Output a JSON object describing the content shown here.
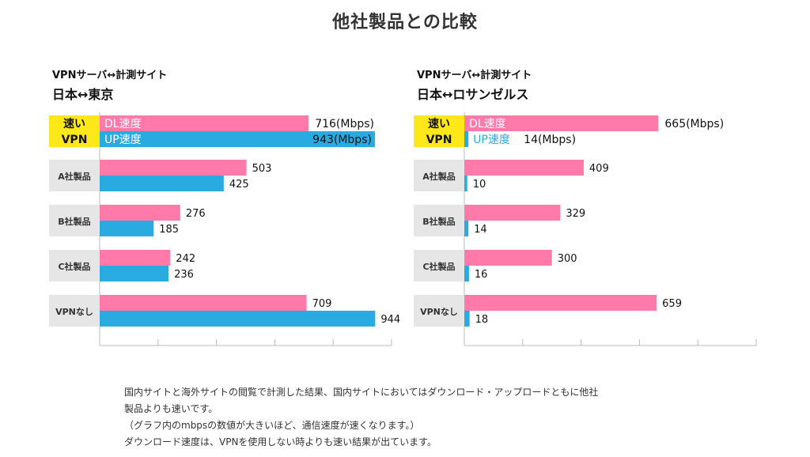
{
  "page": {
    "title": "他社製品との比較"
  },
  "colors": {
    "dl": "#ff7aa8",
    "up": "#29abe2",
    "highlight": "#ffe81a",
    "category_bg": "#e6e6e6",
    "axis": "#bbbbbb"
  },
  "chart_data": [
    {
      "type": "bar",
      "orientation": "horizontal",
      "title_line1": "VPNサーバ↔計測サイト",
      "title_line2": "日本↔東京",
      "categories": [
        "速いVPN",
        "A社製品",
        "B社製品",
        "C社製品",
        "VPNなし"
      ],
      "category_labels": [
        [
          "速い",
          "VPN"
        ],
        [
          "A社製品"
        ],
        [
          "B社製品"
        ],
        [
          "C社製品"
        ],
        [
          "VPNなし"
        ]
      ],
      "series": [
        {
          "name": "DL速度",
          "values": [
            716,
            503,
            276,
            242,
            709
          ]
        },
        {
          "name": "UP速度",
          "values": [
            943,
            425,
            185,
            236,
            944
          ]
        }
      ],
      "value_labels": [
        [
          "716(Mbps)",
          "503",
          "276",
          "242",
          "709"
        ],
        [
          "943(Mbps)",
          "425",
          "185",
          "236",
          "944"
        ]
      ],
      "unit": "Mbps",
      "xlim": [
        0,
        1000
      ],
      "x_ticks": [
        0,
        200,
        400,
        600,
        800,
        1000
      ],
      "tick_labels_shown": false,
      "grid": false,
      "legend": "inline-first-row"
    },
    {
      "type": "bar",
      "orientation": "horizontal",
      "title_line1": "VPNサーバ↔計測サイト",
      "title_line2": "日本↔ロサンゼルス",
      "categories": [
        "速いVPN",
        "A社製品",
        "B社製品",
        "C社製品",
        "VPNなし"
      ],
      "category_labels": [
        [
          "速い",
          "VPN"
        ],
        [
          "A社製品"
        ],
        [
          "B社製品"
        ],
        [
          "C社製品"
        ],
        [
          "VPNなし"
        ]
      ],
      "series": [
        {
          "name": "DL速度",
          "values": [
            665,
            409,
            329,
            300,
            659
          ]
        },
        {
          "name": "UP速度",
          "values": [
            14,
            10,
            14,
            16,
            18
          ]
        }
      ],
      "value_labels": [
        [
          "665(Mbps)",
          "409",
          "329",
          "300",
          "659"
        ],
        [
          "14(Mbps)",
          "10",
          "14",
          "16",
          "18"
        ]
      ],
      "unit": "Mbps",
      "xlim": [
        0,
        1000
      ],
      "x_ticks": [
        0,
        200,
        400,
        600,
        800,
        1000
      ],
      "tick_labels_shown": false,
      "grid": false,
      "legend": "inline-first-row"
    }
  ],
  "notes": [
    "国内サイトと海外サイトの閲覧で計測した結果、国内サイトにおいてはダウンロード・アップロードともに他社",
    "製品よりも速いです。",
    "（グラフ内のmbpsの数値が大きいほど、通信速度が速くなります。）",
    "ダウンロード速度は、VPNを使用しない時よりも速い結果が出ています。"
  ]
}
